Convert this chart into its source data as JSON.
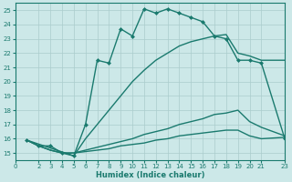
{
  "xlabel": "Humidex (Indice chaleur)",
  "bg_color": "#cce8e8",
  "grid_color": "#aacccc",
  "line_color": "#1a7a6e",
  "xlim": [
    0,
    23
  ],
  "ylim": [
    14.5,
    25.5
  ],
  "xticks": [
    0,
    2,
    3,
    4,
    5,
    6,
    7,
    8,
    9,
    10,
    11,
    12,
    13,
    14,
    15,
    16,
    17,
    18,
    19,
    20,
    21,
    23
  ],
  "yticks": [
    15,
    16,
    17,
    18,
    19,
    20,
    21,
    22,
    23,
    24,
    25
  ],
  "lines": [
    {
      "x": [
        1,
        2,
        3,
        4,
        5,
        6,
        7,
        8,
        9,
        10,
        11,
        12,
        13,
        14,
        15,
        16,
        17,
        18,
        19,
        20,
        21,
        23
      ],
      "y": [
        15.9,
        15.5,
        15.5,
        15.0,
        14.8,
        17.0,
        21.5,
        21.3,
        23.7,
        23.2,
        25.1,
        24.8,
        25.1,
        24.8,
        24.5,
        24.2,
        23.2,
        23.0,
        21.5,
        21.5,
        21.3,
        16.0
      ],
      "marker": "D",
      "markersize": 2.0,
      "lw": 1.0
    },
    {
      "x": [
        1,
        5,
        6,
        7,
        8,
        9,
        10,
        11,
        12,
        13,
        14,
        15,
        16,
        17,
        18,
        19,
        20,
        21,
        23
      ],
      "y": [
        15.9,
        14.8,
        16.0,
        17.0,
        18.0,
        19.0,
        20.0,
        20.8,
        21.5,
        22.0,
        22.5,
        22.8,
        23.0,
        23.2,
        23.3,
        22.0,
        21.8,
        21.5,
        21.5
      ],
      "marker": null,
      "markersize": 0,
      "lw": 1.0
    },
    {
      "x": [
        1,
        2,
        3,
        4,
        5,
        6,
        7,
        8,
        9,
        10,
        11,
        12,
        13,
        14,
        15,
        16,
        17,
        18,
        19,
        20,
        21,
        23
      ],
      "y": [
        15.9,
        15.5,
        15.2,
        15.0,
        15.0,
        15.2,
        15.4,
        15.6,
        15.8,
        16.0,
        16.3,
        16.5,
        16.7,
        17.0,
        17.2,
        17.4,
        17.7,
        17.8,
        18.0,
        17.2,
        16.8,
        16.2
      ],
      "marker": null,
      "markersize": 0,
      "lw": 1.0
    },
    {
      "x": [
        1,
        2,
        3,
        4,
        5,
        6,
        7,
        8,
        9,
        10,
        11,
        12,
        13,
        14,
        15,
        16,
        17,
        18,
        19,
        20,
        21,
        23
      ],
      "y": [
        15.9,
        15.5,
        15.2,
        15.0,
        15.0,
        15.1,
        15.2,
        15.3,
        15.5,
        15.6,
        15.7,
        15.9,
        16.0,
        16.2,
        16.3,
        16.4,
        16.5,
        16.6,
        16.6,
        16.2,
        16.0,
        16.1
      ],
      "marker": null,
      "markersize": 0,
      "lw": 1.0
    }
  ]
}
